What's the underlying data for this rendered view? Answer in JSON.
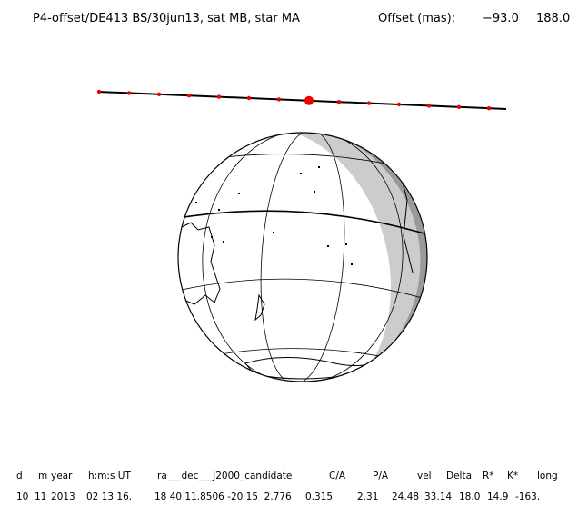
{
  "header": {
    "title": "P4-offset/DE413 BS/30jun13, sat MB, star MA",
    "offset_label": "Offset (mas):",
    "offset_values": [
      "−93.0",
      "188.0"
    ]
  },
  "table": {
    "columns": [
      "d",
      "m",
      "year",
      "h:m:s UT",
      "ra___dec___J2000_candidate",
      "C/A",
      "P/A",
      "vel",
      "Delta",
      "R*",
      "K*",
      "long"
    ],
    "rows": [
      [
        "10",
        "11",
        "2013",
        "02 13 16.",
        "18 40 11.8506 -20 15  2.776",
        "0.315",
        "2.31",
        "24.48",
        "33.14",
        "18.0",
        "14.9",
        "-163."
      ]
    ]
  }
}
